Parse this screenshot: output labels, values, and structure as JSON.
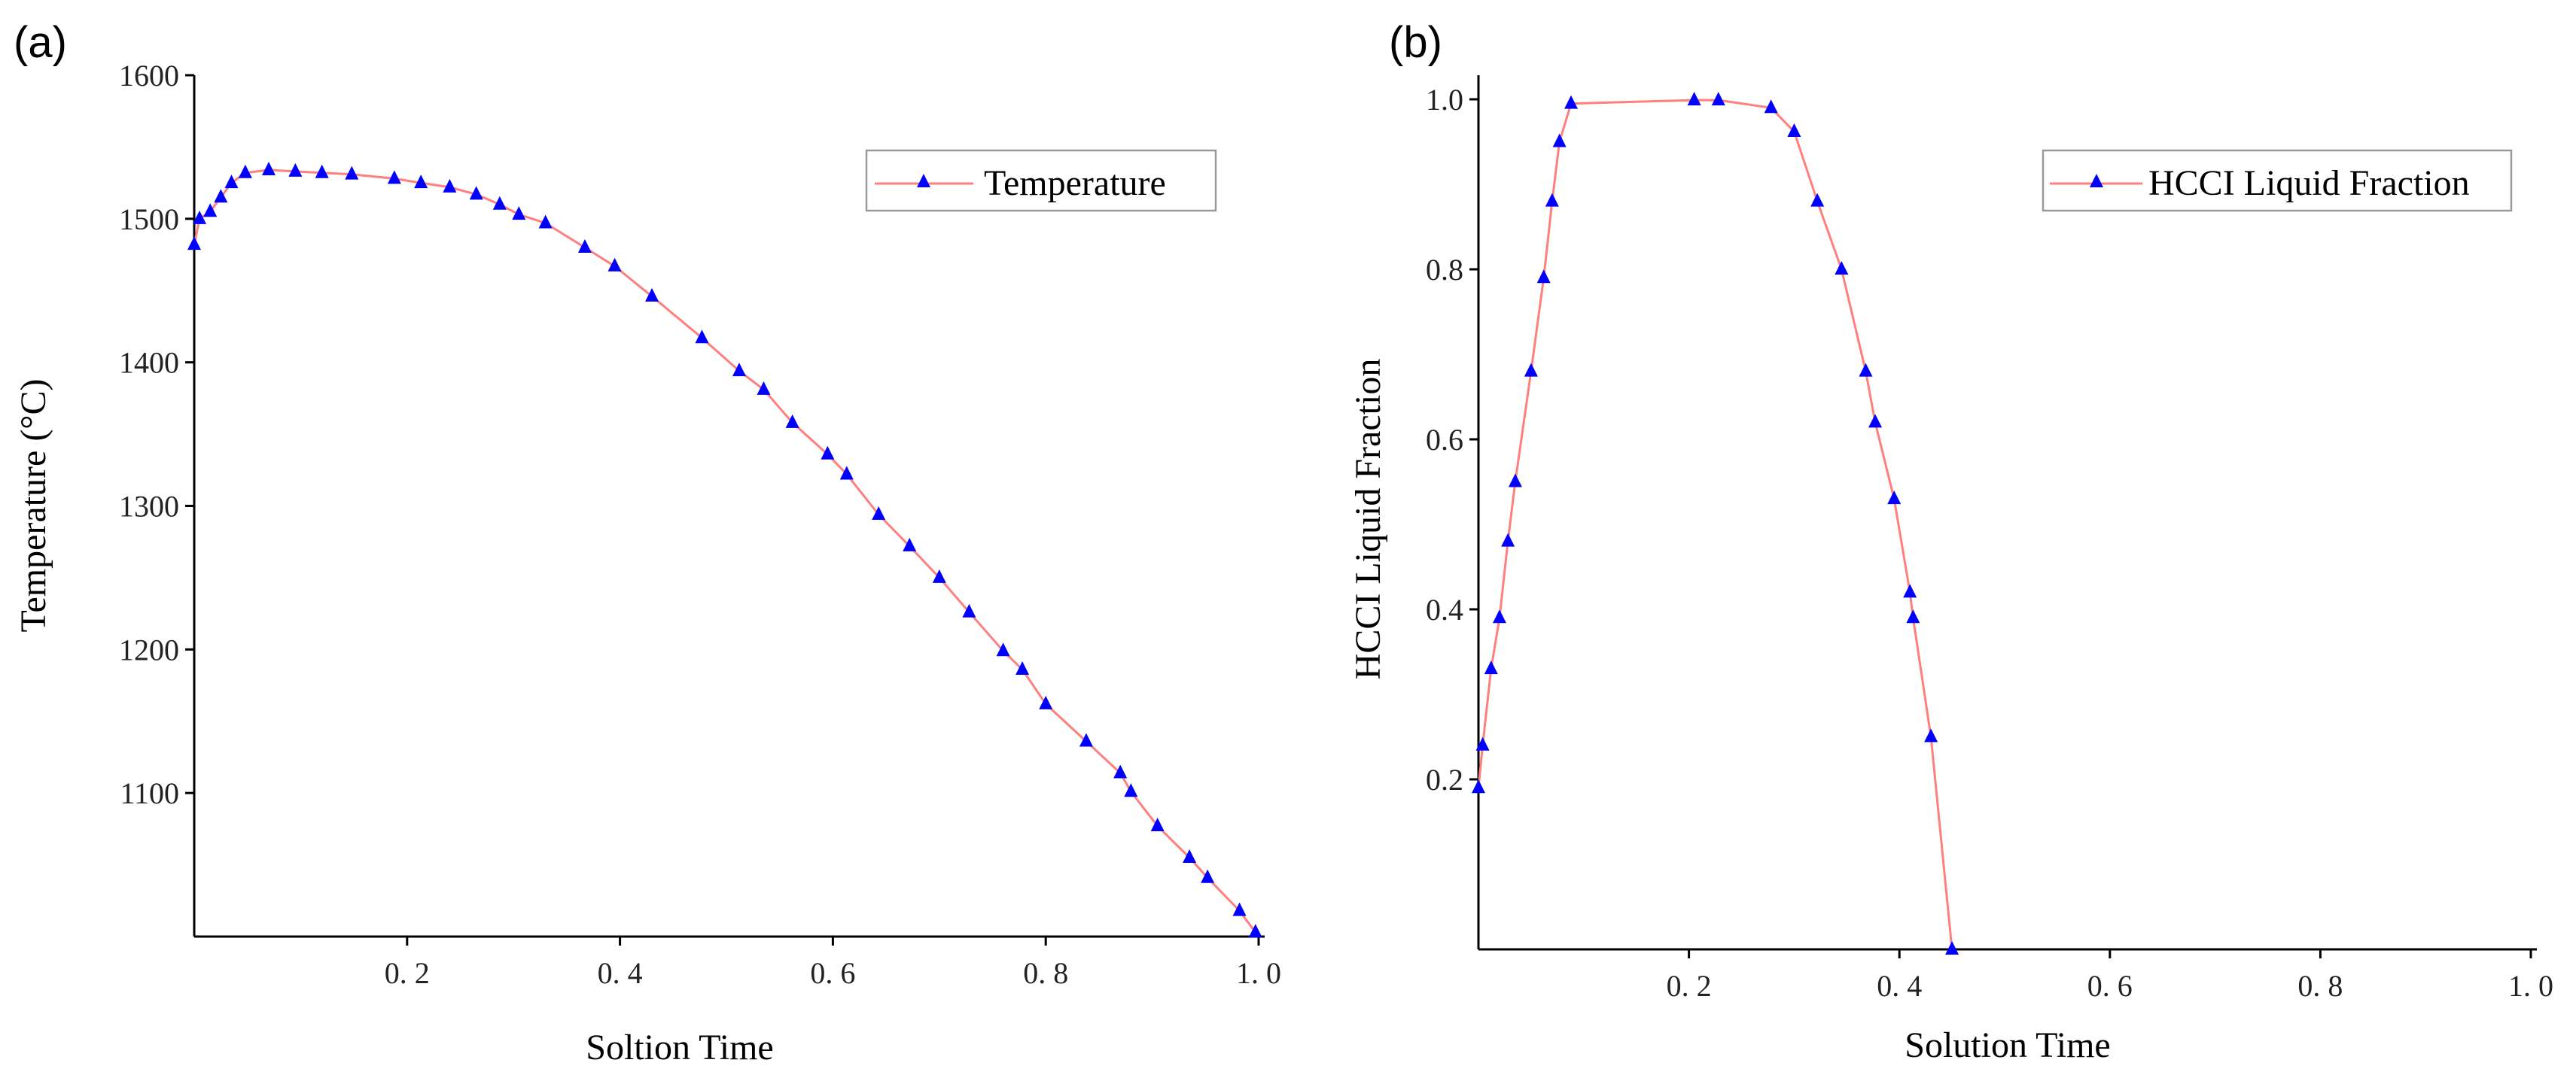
{
  "colors": {
    "line": "#ff7f7f",
    "marker": "#0000ff",
    "axis": "#000000"
  },
  "chart_data": [
    {
      "id": "a",
      "panel_label": "(a)",
      "type": "line",
      "title": "",
      "xlabel": "Soltion Time",
      "ylabel": "Temperature (°C)",
      "xlim": [
        0,
        1.0
      ],
      "ylim": [
        1000,
        1600
      ],
      "xticks": [
        0.2,
        0.4,
        0.6,
        0.8,
        1.0
      ],
      "xtick_labels": [
        "0. 2",
        "0. 4",
        "0. 6",
        "0. 8",
        "1. 0"
      ],
      "yticks": [
        1100,
        1200,
        1300,
        1400,
        1500,
        1600
      ],
      "ytick_labels": [
        "1100",
        "1200",
        "1300",
        "1400",
        "1500",
        "1600"
      ],
      "legend": "top-right",
      "series": [
        {
          "name": "Temperature",
          "x": [
            0.0,
            0.005,
            0.015,
            0.025,
            0.035,
            0.048,
            0.07,
            0.095,
            0.12,
            0.148,
            0.188,
            0.213,
            0.24,
            0.265,
            0.287,
            0.305,
            0.33,
            0.367,
            0.395,
            0.43,
            0.477,
            0.512,
            0.535,
            0.562,
            0.595,
            0.613,
            0.643,
            0.672,
            0.7,
            0.728,
            0.76,
            0.778,
            0.8,
            0.838,
            0.87,
            0.88,
            0.905,
            0.935,
            0.952,
            0.982,
            0.997
          ],
          "y": [
            1482,
            1500,
            1505,
            1515,
            1525,
            1532,
            1534,
            1533,
            1532,
            1531,
            1528,
            1525,
            1522,
            1517,
            1510,
            1503,
            1497,
            1480,
            1467,
            1446,
            1417,
            1394,
            1381,
            1358,
            1336,
            1322,
            1294,
            1272,
            1250,
            1226,
            1199,
            1186,
            1162,
            1136,
            1114,
            1101,
            1077,
            1055,
            1041,
            1018,
            1003
          ]
        }
      ]
    },
    {
      "id": "b",
      "panel_label": "(b)",
      "type": "line",
      "title": "",
      "xlabel": "Solution Time",
      "ylabel": "HCCI Liquid Fraction",
      "xlim": [
        0,
        1.0
      ],
      "ylim": [
        0,
        1.0
      ],
      "xticks": [
        0.2,
        0.4,
        0.6,
        0.8,
        1.0
      ],
      "xtick_labels": [
        "0. 2",
        "0. 4",
        "0. 6",
        "0. 8",
        "1. 0"
      ],
      "yticks": [
        0.2,
        0.4,
        0.6,
        0.8,
        1.0
      ],
      "ytick_labels": [
        "0.2",
        "0.4",
        "0.6",
        "0.8",
        "1.0"
      ],
      "legend": "top-right",
      "series": [
        {
          "name": "HCCI Liquid Fraction",
          "x": [
            0.0,
            0.004,
            0.012,
            0.02,
            0.028,
            0.035,
            0.05,
            0.062,
            0.07,
            0.077,
            0.088,
            0.205,
            0.228,
            0.278,
            0.3,
            0.322,
            0.345,
            0.368,
            0.377,
            0.395,
            0.41,
            0.413,
            0.43,
            0.45
          ],
          "y": [
            0.19,
            0.24,
            0.33,
            0.39,
            0.48,
            0.55,
            0.68,
            0.79,
            0.88,
            0.95,
            0.995,
            0.999,
            0.999,
            0.99,
            0.962,
            0.88,
            0.8,
            0.68,
            0.62,
            0.53,
            0.42,
            0.39,
            0.25,
            0.0
          ]
        }
      ]
    }
  ]
}
